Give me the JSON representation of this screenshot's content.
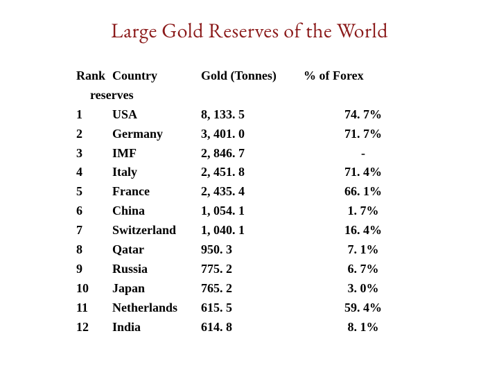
{
  "title": "Large Gold Reserves of the World",
  "title_color": "#8b1a1a",
  "title_fontsize": 30,
  "body_fontsize": 18,
  "text_color": "#000000",
  "background_color": "#ffffff",
  "headers": {
    "rank": "Rank",
    "country": "Country",
    "gold": "Gold (Tonnes)",
    "forex": "% of Forex",
    "sub": "reserves"
  },
  "columns": [
    "Rank",
    "Country",
    "Gold (Tonnes)",
    "% of Forex reserves"
  ],
  "rows": [
    {
      "rank": "1",
      "country": "USA",
      "gold": "8, 133. 5",
      "forex": "74. 7%"
    },
    {
      "rank": "2",
      "country": "Germany",
      "gold": "3, 401. 0",
      "forex": "71. 7%"
    },
    {
      "rank": "3",
      "country": "IMF",
      "gold": "2, 846. 7",
      "forex": "-"
    },
    {
      "rank": "4",
      "country": "Italy",
      "gold": "2, 451. 8",
      "forex": "71. 4%"
    },
    {
      "rank": "5",
      "country": "France",
      "gold": "2, 435. 4",
      "forex": "66. 1%"
    },
    {
      "rank": "6",
      "country": "China",
      "gold": "1, 054. 1",
      "forex": "1. 7%"
    },
    {
      "rank": "7",
      "country": "Switzerland",
      "gold": "1, 040. 1",
      "forex": "16. 4%"
    },
    {
      "rank": "8",
      "country": "Qatar",
      "gold": "950. 3",
      "forex": "7. 1%"
    },
    {
      "rank": "9",
      "country": "Russia",
      "gold": "775. 2",
      "forex": "6. 7%"
    },
    {
      "rank": "10",
      "country": "Japan",
      "gold": "765. 2",
      "forex": "3. 0%"
    },
    {
      "rank": "11",
      "country": "Netherlands",
      "gold": " 615. 5",
      "forex": "59. 4%"
    },
    {
      "rank": "12",
      "country": "India",
      "gold": "614. 8",
      "forex": " 8. 1%"
    }
  ]
}
